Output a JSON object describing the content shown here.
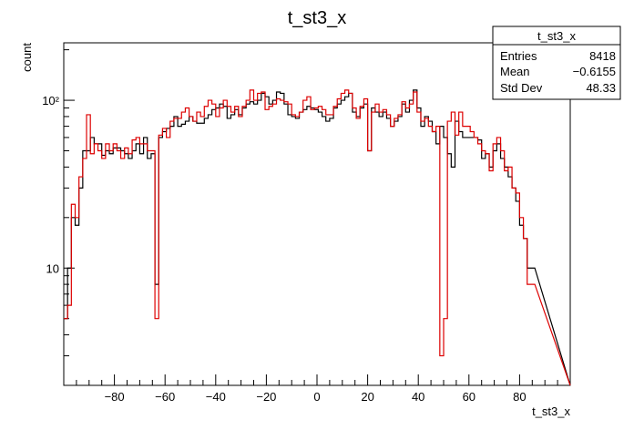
{
  "chart_data": {
    "type": "histogram",
    "title": "t_st3_x",
    "xlabel": "t_st3_x",
    "ylabel": "count",
    "xlim": [
      -100,
      100
    ],
    "ylim": [
      2,
      220
    ],
    "yscale": "log",
    "x_ticks": [
      -80,
      -60,
      -40,
      -20,
      0,
      20,
      40,
      60,
      80
    ],
    "x_tick_labels": [
      "−80",
      "−60",
      "−40",
      "−20",
      "0",
      "20",
      "40",
      "60",
      "80"
    ],
    "y_ticks": [
      10,
      100
    ],
    "y_tick_labels": [
      "10",
      "10²"
    ],
    "bin_width": 1.5,
    "series": [
      {
        "color": "#000000",
        "values": [
          5,
          10,
          20,
          18,
          30,
          50,
          50,
          60,
          55,
          55,
          47,
          50,
          48,
          52,
          52,
          50,
          48,
          45,
          50,
          55,
          48,
          60,
          45,
          48,
          8,
          60,
          65,
          68,
          70,
          80,
          70,
          72,
          75,
          80,
          75,
          73,
          73,
          78,
          82,
          88,
          90,
          95,
          92,
          78,
          82,
          88,
          82,
          90,
          95,
          98,
          95,
          100,
          110,
          105,
          95,
          100,
          112,
          110,
          95,
          82,
          80,
          78,
          85,
          88,
          92,
          90,
          88,
          85,
          80,
          75,
          78,
          90,
          95,
          100,
          105,
          110,
          85,
          80,
          90,
          95,
          50,
          90,
          85,
          80,
          85,
          78,
          70,
          75,
          80,
          95,
          85,
          100,
          115,
          90,
          70,
          80,
          75,
          65,
          55,
          70,
          60,
          48,
          40,
          75,
          65,
          60,
          60,
          60,
          60,
          58,
          45,
          48,
          40,
          50,
          55,
          45,
          40,
          35,
          30,
          25,
          18,
          15,
          10,
          10
        ]
      },
      {
        "color": "#dd0000",
        "values": [
          5,
          6,
          24,
          20,
          35,
          45,
          82,
          48,
          55,
          50,
          45,
          55,
          50,
          55,
          50,
          45,
          52,
          48,
          58,
          60,
          55,
          55,
          50,
          50,
          5,
          62,
          68,
          60,
          75,
          78,
          78,
          85,
          90,
          80,
          75,
          85,
          80,
          92,
          100,
          95,
          80,
          90,
          100,
          92,
          85,
          92,
          80,
          92,
          100,
          115,
          100,
          110,
          112,
          88,
          92,
          95,
          102,
          100,
          98,
          95,
          82,
          80,
          85,
          100,
          105,
          88,
          90,
          92,
          88,
          82,
          82,
          92,
          102,
          110,
          115,
          110,
          90,
          78,
          92,
          102,
          50,
          85,
          95,
          85,
          88,
          82,
          70,
          78,
          82,
          98,
          90,
          95,
          112,
          85,
          75,
          78,
          70,
          65,
          70,
          3,
          5,
          75,
          85,
          62,
          85,
          70,
          70,
          65,
          60,
          55,
          50,
          48,
          38,
          55,
          60,
          50,
          38,
          40,
          30,
          28,
          20,
          15,
          8,
          8
        ]
      }
    ],
    "stats": {
      "title": "t_st3_x",
      "rows": [
        {
          "label": "Entries",
          "value": "8418"
        },
        {
          "label": "Mean",
          "value": "−0.6155"
        },
        {
          "label": "Std Dev",
          "value": "48.33"
        }
      ]
    }
  }
}
